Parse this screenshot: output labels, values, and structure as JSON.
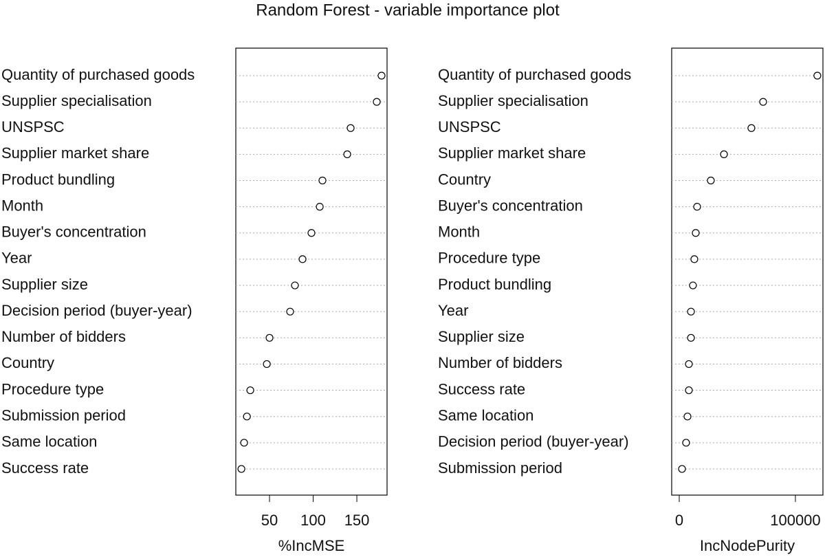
{
  "title": "Random Forest - variable importance plot",
  "chart_data": [
    {
      "type": "dot",
      "xlabel": "%IncMSE",
      "categories": [
        "Quantity of purchased goods",
        "Supplier specialisation",
        "UNSPSC",
        "Supplier market share",
        "Product bundling",
        "Month",
        "Buyer's concentration",
        "Year",
        "Supplier size",
        "Decision period (buyer-year)",
        "Number of bidders",
        "Country",
        "Procedure type",
        "Submission period",
        "Same location",
        "Success rate"
      ],
      "values": [
        178.3,
        172.8,
        142.9,
        139,
        110.6,
        107.5,
        98,
        87.8,
        79.1,
        73.6,
        50,
        46.9,
        28,
        24.1,
        20.9,
        17.8
      ],
      "xlim": [
        11.4,
        184.6
      ],
      "xticks": [
        50,
        100,
        150
      ],
      "grid": true
    },
    {
      "type": "dot",
      "xlabel": "IncNodePurity",
      "categories": [
        "Quantity of purchased goods",
        "Supplier specialisation",
        "UNSPSC",
        "Supplier market share",
        "Country",
        "Buyer's concentration",
        "Month",
        "Procedure type",
        "Product bundling",
        "Year",
        "Supplier size",
        "Number of bidders",
        "Success rate",
        "Same location",
        "Decision period (buyer-year)",
        "Submission period"
      ],
      "values": [
        118900,
        72200,
        62100,
        38500,
        27200,
        15400,
        14200,
        13000,
        11800,
        10100,
        10100,
        8300,
        8300,
        7100,
        5900,
        2400
      ],
      "xlim": [
        -6500,
        123700
      ],
      "xticks": [
        0,
        100000
      ],
      "grid": true
    }
  ]
}
